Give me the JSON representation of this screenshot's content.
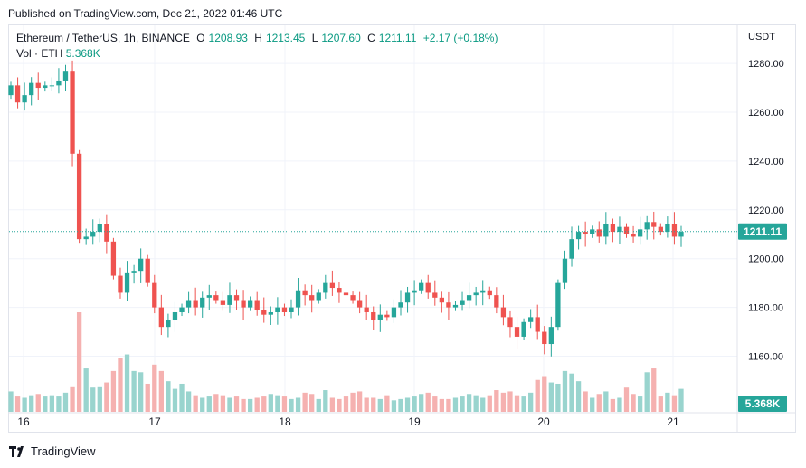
{
  "header": {
    "published_text": "Published on TradingView.com, Dec 21, 2022 01:46 UTC"
  },
  "legend": {
    "symbol": "Ethereum / TetherUS, 1h, BINANCE",
    "open_label": "O",
    "open": "1208.93",
    "high_label": "H",
    "high": "1213.45",
    "low_label": "L",
    "low": "1207.60",
    "close_label": "C",
    "close": "1211.11",
    "change": "+2.17 (+0.18%)",
    "vol_label": "Vol · ETH",
    "vol_value": "5.368K"
  },
  "axis": {
    "currency": "USDT"
  },
  "price_badge": "1211.11",
  "volume_badge": "5.368K",
  "branding": {
    "logo_text": "TradingView",
    "logo_icon": "tradingview-logo-icon"
  },
  "colors": {
    "up": "#26a69a",
    "down": "#ef5350",
    "up_volume": "#99d4ce",
    "down_volume": "#f5b1b0",
    "grid": "#f0f3fa",
    "price_line": "#26a69a"
  },
  "chart_data": {
    "type": "candlestick",
    "title": "Ethereum / TetherUS, 1h, BINANCE",
    "ylabel": "USDT",
    "ylim": [
      1148,
      1288
    ],
    "yticks": [
      1160,
      1180,
      1200,
      1220,
      1240,
      1260,
      1280
    ],
    "xticks": [
      "16",
      "17",
      "18",
      "19",
      "20",
      "21"
    ],
    "last_price": 1211.11,
    "grid": true,
    "series": [
      {
        "name": "Price",
        "close_path": [
          1271,
          1264,
          1267,
          1272,
          1270,
          1271,
          1271,
          1273,
          1277,
          1243,
          1208,
          1209,
          1211,
          1214,
          1207,
          1193,
          1186,
          1194,
          1195,
          1200,
          1190,
          1180,
          1172,
          1175,
          1178,
          1180,
          1183,
          1180,
          1184,
          1185,
          1183,
          1181,
          1185,
          1183,
          1180,
          1183,
          1179,
          1177,
          1178,
          1180,
          1178,
          1180,
          1187,
          1185,
          1183,
          1186,
          1190,
          1188,
          1186,
          1185,
          1183,
          1180,
          1178,
          1175,
          1177,
          1176,
          1180,
          1182,
          1186,
          1187,
          1190,
          1186,
          1184,
          1182,
          1180,
          1181,
          1183,
          1185,
          1186,
          1187,
          1185,
          1180,
          1176,
          1172,
          1168,
          1174,
          1176,
          1170,
          1165,
          1172,
          1190,
          1200,
          1208,
          1211,
          1210,
          1212,
          1209,
          1214,
          1211,
          1213,
          1210,
          1209,
          1212,
          1215,
          1213,
          1211,
          1214,
          1209,
          1211
        ]
      },
      {
        "name": "Volume",
        "values": [
          1.6,
          1.2,
          1.1,
          1.3,
          1.4,
          1.2,
          1.3,
          1.2,
          1.5,
          2.0,
          7.8,
          3.4,
          1.9,
          2.0,
          2.3,
          3.2,
          4.2,
          4.5,
          3.2,
          3.1,
          2.2,
          3.7,
          3.2,
          2.4,
          1.8,
          2.2,
          1.6,
          1.3,
          1.1,
          1.2,
          1.4,
          1.3,
          1.1,
          1.2,
          1.0,
          1.0,
          1.1,
          1.2,
          1.4,
          1.3,
          1.2,
          1.0,
          1.1,
          1.5,
          1.4,
          1.0,
          1.7,
          1.1,
          1.0,
          1.2,
          1.5,
          1.6,
          1.1,
          1.1,
          1.0,
          1.3,
          0.9,
          1.0,
          1.1,
          1.2,
          1.4,
          1.5,
          1.2,
          1.0,
          1.0,
          1.1,
          1.2,
          1.4,
          1.3,
          1.1,
          1.3,
          1.7,
          1.5,
          1.6,
          1.3,
          1.2,
          1.5,
          2.5,
          2.8,
          2.3,
          2.2,
          3.2,
          3.0,
          2.4,
          1.6,
          1.1,
          1.4,
          1.6,
          1.0,
          1.1,
          1.9,
          1.4,
          1.2,
          3.1,
          3.4,
          1.2,
          1.5,
          1.3,
          1.8
        ]
      }
    ]
  }
}
